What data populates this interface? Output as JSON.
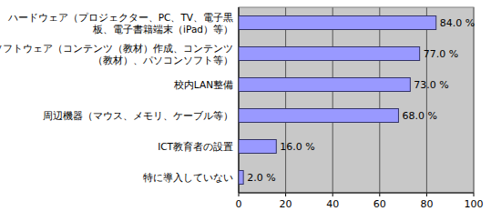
{
  "chart_data": {
    "type": "bar",
    "orientation": "horizontal",
    "categories": [
      "ハードウェア（プロジェクター、PC、TV、電子黒\n板、電子書籍端末（iPad）等）",
      "ソフトウェア（コンテンツ（教材）作成、コンテンツ\n（教材）、パソコンソフト等）",
      "校内LAN整備",
      "周辺機器（マウス、メモリ、ケーブル等）",
      "ICT教育者の設置",
      "特に導入していない"
    ],
    "values": [
      84,
      77,
      73,
      68,
      16,
      2
    ],
    "value_labels": [
      "84.0 %",
      "77.0 %",
      "73.0 %",
      "68.0 %",
      "16.0 %",
      "2.0 %"
    ],
    "color": "#9999ff",
    "xlim": [
      0,
      100
    ],
    "xticks": [
      0,
      20,
      40,
      60,
      80,
      100
    ],
    "grid": true,
    "data_labels": true
  }
}
